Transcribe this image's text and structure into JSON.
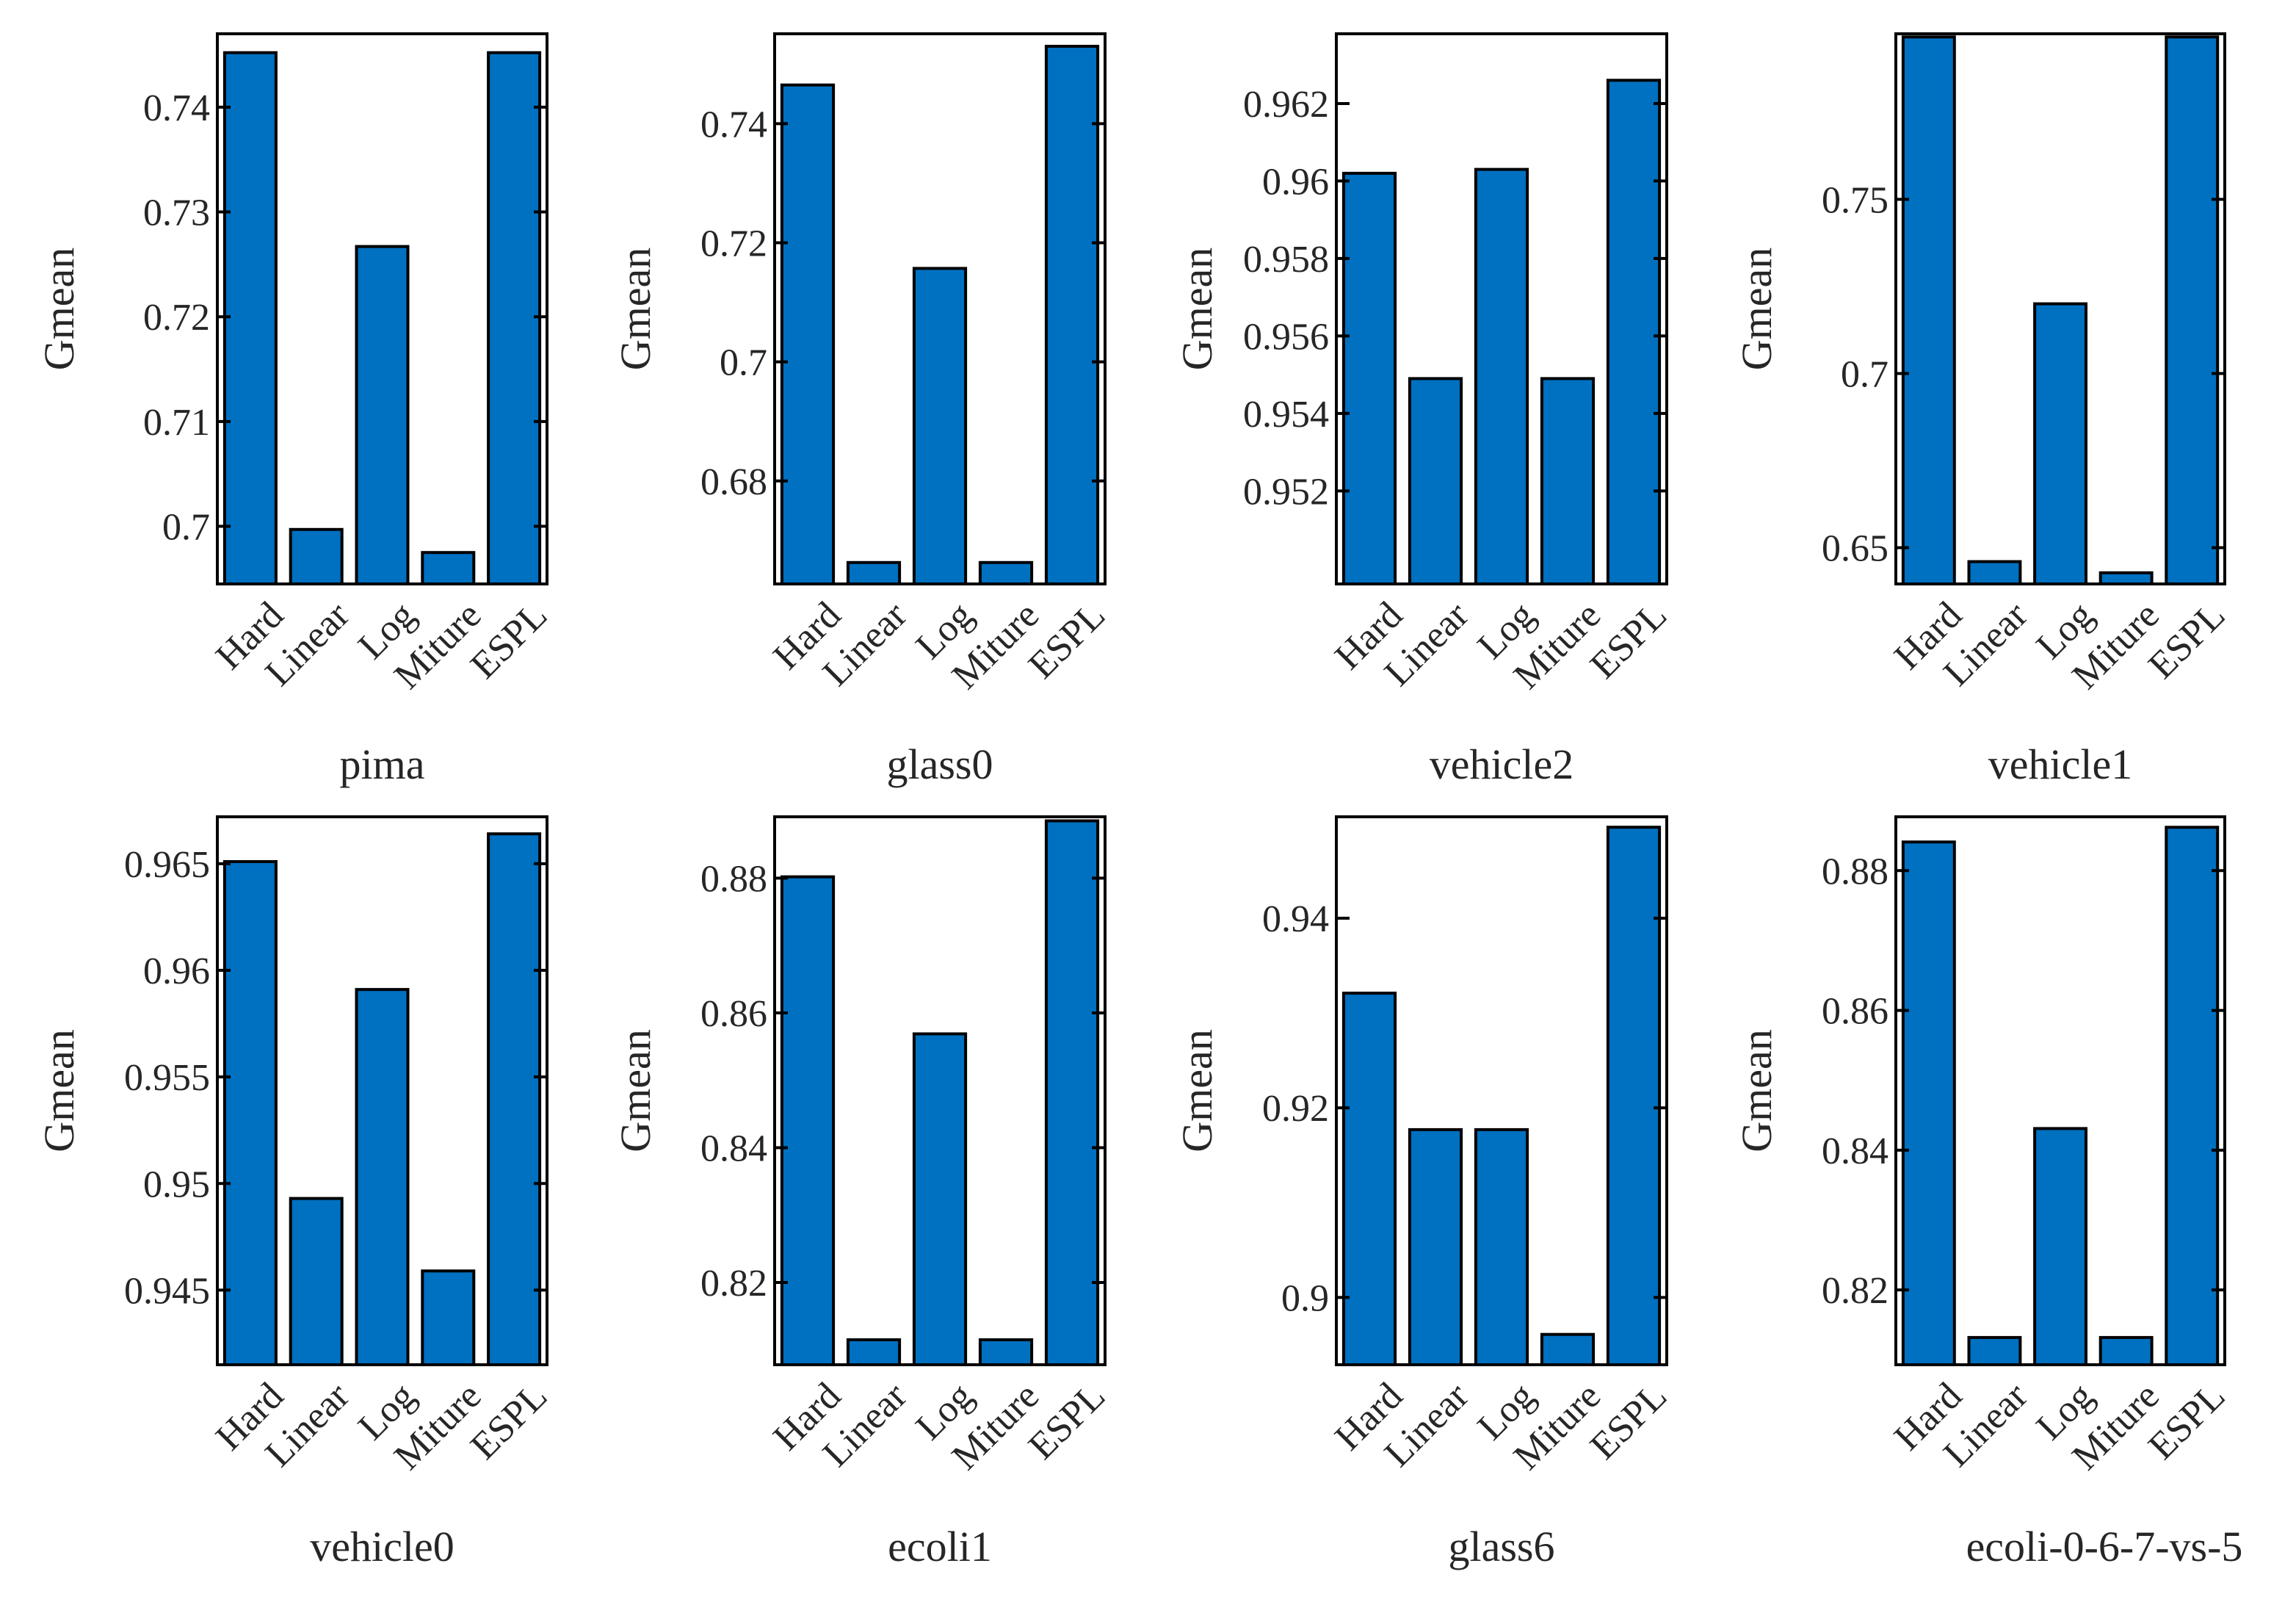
{
  "figure": {
    "ylabel": "Gmean",
    "bar_color": "#0070C0",
    "categories": [
      "Hard",
      "Linear",
      "Log",
      "Miture",
      "ESPL"
    ]
  },
  "chart_data": [
    {
      "type": "bar",
      "name": "pima",
      "xlabel": "pima",
      "ylabel": "Gmean",
      "categories": [
        "Hard",
        "Linear",
        "Log",
        "Miture",
        "ESPL"
      ],
      "values": [
        0.7452,
        0.6997,
        0.7267,
        0.6975,
        0.7452
      ],
      "ylim": [
        0.6945,
        0.747
      ],
      "yticks": [
        0.7,
        0.71,
        0.72,
        0.73,
        0.74
      ],
      "ytick_labels": [
        "0.7",
        "0.71",
        "0.72",
        "0.73",
        "0.74"
      ]
    },
    {
      "type": "bar",
      "name": "glass0",
      "xlabel": "glass0",
      "ylabel": "Gmean",
      "categories": [
        "Hard",
        "Linear",
        "Log",
        "Miture",
        "ESPL"
      ],
      "values": [
        0.7465,
        0.6663,
        0.7157,
        0.6663,
        0.753
      ],
      "ylim": [
        0.6627,
        0.7551
      ],
      "yticks": [
        0.68,
        0.7,
        0.72,
        0.74
      ],
      "ytick_labels": [
        "0.68",
        "0.7",
        "0.72",
        "0.74"
      ]
    },
    {
      "type": "bar",
      "name": "vehicle2",
      "xlabel": "vehicle2",
      "ylabel": "Gmean",
      "categories": [
        "Hard",
        "Linear",
        "Log",
        "Miture",
        "ESPL"
      ],
      "values": [
        0.9602,
        0.9549,
        0.9603,
        0.9549,
        0.9626
      ],
      "ylim": [
        0.9496,
        0.9638
      ],
      "yticks": [
        0.952,
        0.954,
        0.956,
        0.958,
        0.96,
        0.962
      ],
      "ytick_labels": [
        "0.952",
        "0.954",
        "0.956",
        "0.958",
        "0.96",
        "0.962"
      ]
    },
    {
      "type": "bar",
      "name": "vehicle1",
      "xlabel": "vehicle1",
      "ylabel": "Gmean",
      "categories": [
        "Hard",
        "Linear",
        "Log",
        "Miture",
        "ESPL"
      ],
      "values": [
        0.7966,
        0.646,
        0.72,
        0.6428,
        0.7966
      ],
      "ylim": [
        0.6396,
        0.7975
      ],
      "yticks": [
        0.65,
        0.7,
        0.75
      ],
      "ytick_labels": [
        "0.65",
        "0.7",
        "0.75"
      ]
    },
    {
      "type": "bar",
      "name": "vehicle0",
      "xlabel": "vehicle0",
      "ylabel": "Gmean",
      "categories": [
        "Hard",
        "Linear",
        "Log",
        "Miture",
        "ESPL"
      ],
      "values": [
        0.9651,
        0.9493,
        0.9591,
        0.9459,
        0.9664
      ],
      "ylim": [
        0.9415,
        0.9672
      ],
      "yticks": [
        0.945,
        0.95,
        0.955,
        0.96,
        0.965
      ],
      "ytick_labels": [
        "0.945",
        "0.95",
        "0.955",
        "0.96",
        "0.965"
      ]
    },
    {
      "type": "bar",
      "name": "ecoli1",
      "xlabel": "ecoli1",
      "ylabel": "Gmean",
      "categories": [
        "Hard",
        "Linear",
        "Log",
        "Miture",
        "ESPL"
      ],
      "values": [
        0.8802,
        0.8115,
        0.8569,
        0.8115,
        0.8885
      ],
      "ylim": [
        0.8078,
        0.8891
      ],
      "yticks": [
        0.82,
        0.84,
        0.86,
        0.88
      ],
      "ytick_labels": [
        "0.82",
        "0.84",
        "0.86",
        "0.88"
      ]
    },
    {
      "type": "bar",
      "name": "glass6",
      "xlabel": "glass6",
      "ylabel": "Gmean",
      "categories": [
        "Hard",
        "Linear",
        "Log",
        "Miture",
        "ESPL"
      ],
      "values": [
        0.9321,
        0.9177,
        0.9177,
        0.8961,
        0.9496
      ],
      "ylim": [
        0.8929,
        0.9507
      ],
      "yticks": [
        0.9,
        0.92,
        0.94
      ],
      "ytick_labels": [
        "0.9",
        "0.92",
        "0.94"
      ]
    },
    {
      "type": "bar",
      "name": "ecoli-0-6-7-vs-5",
      "xlabel": "ecoli-0-6-7-vs-5",
      "ylabel": "Gmean",
      "categories": [
        "Hard",
        "Linear",
        "Log",
        "Miture",
        "ESPL"
      ],
      "values": [
        0.8841,
        0.8132,
        0.8431,
        0.8132,
        0.8862
      ],
      "ylim": [
        0.8093,
        0.8877
      ],
      "yticks": [
        0.82,
        0.84,
        0.86,
        0.88
      ],
      "ytick_labels": [
        "0.82",
        "0.84",
        "0.86",
        "0.88"
      ]
    }
  ]
}
